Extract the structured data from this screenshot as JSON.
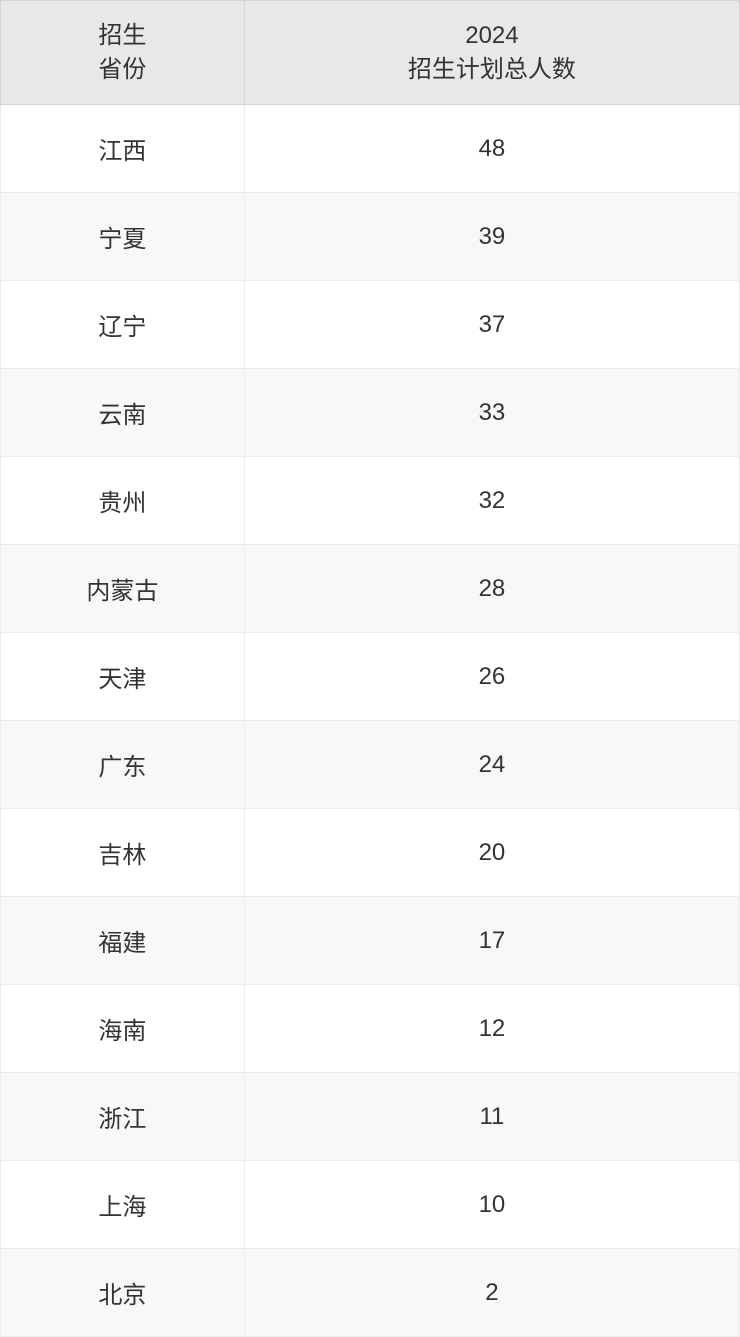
{
  "table": {
    "header": {
      "province_line1": "招生",
      "province_line2": "省份",
      "count_line1": "2024",
      "count_line2": "招生计划总人数"
    },
    "rows": [
      {
        "province": "江西",
        "count": "48"
      },
      {
        "province": "宁夏",
        "count": "39"
      },
      {
        "province": "辽宁",
        "count": "37"
      },
      {
        "province": "云南",
        "count": "33"
      },
      {
        "province": "贵州",
        "count": "32"
      },
      {
        "province": "内蒙古",
        "count": "28"
      },
      {
        "province": "天津",
        "count": "26"
      },
      {
        "province": "广东",
        "count": "24"
      },
      {
        "province": "吉林",
        "count": "20"
      },
      {
        "province": "福建",
        "count": "17"
      },
      {
        "province": "海南",
        "count": "12"
      },
      {
        "province": "浙江",
        "count": "11"
      },
      {
        "province": "上海",
        "count": "10"
      },
      {
        "province": "北京",
        "count": "2"
      }
    ],
    "styling": {
      "header_bg": "#e8e8e8",
      "header_border": "#d5d5d5",
      "row_odd_bg": "#ffffff",
      "row_even_bg": "#f8f8f8",
      "cell_border": "#ececec",
      "text_color": "#333333",
      "font_size": 24,
      "col_widths": [
        "33%",
        "67%"
      ]
    }
  }
}
